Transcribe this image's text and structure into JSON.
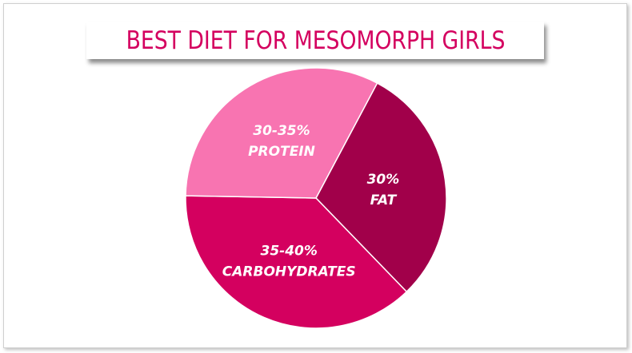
{
  "chart_data": {
    "type": "pie",
    "title": "BEST DIET FOR MESOMORPH GIRLS",
    "slices": [
      {
        "label_line1": "30%",
        "label_line2": "FAT",
        "value": 30,
        "color": "#a1004a"
      },
      {
        "label_line1": "35-40%",
        "label_line2": "CARBOHYDRATES",
        "value": 37.5,
        "color": "#d4005f"
      },
      {
        "label_line1": "30-35%",
        "label_line2": "PROTEIN",
        "value": 32.5,
        "color": "#f874b1"
      }
    ],
    "start_angle_deg": 28,
    "legend": "none"
  }
}
